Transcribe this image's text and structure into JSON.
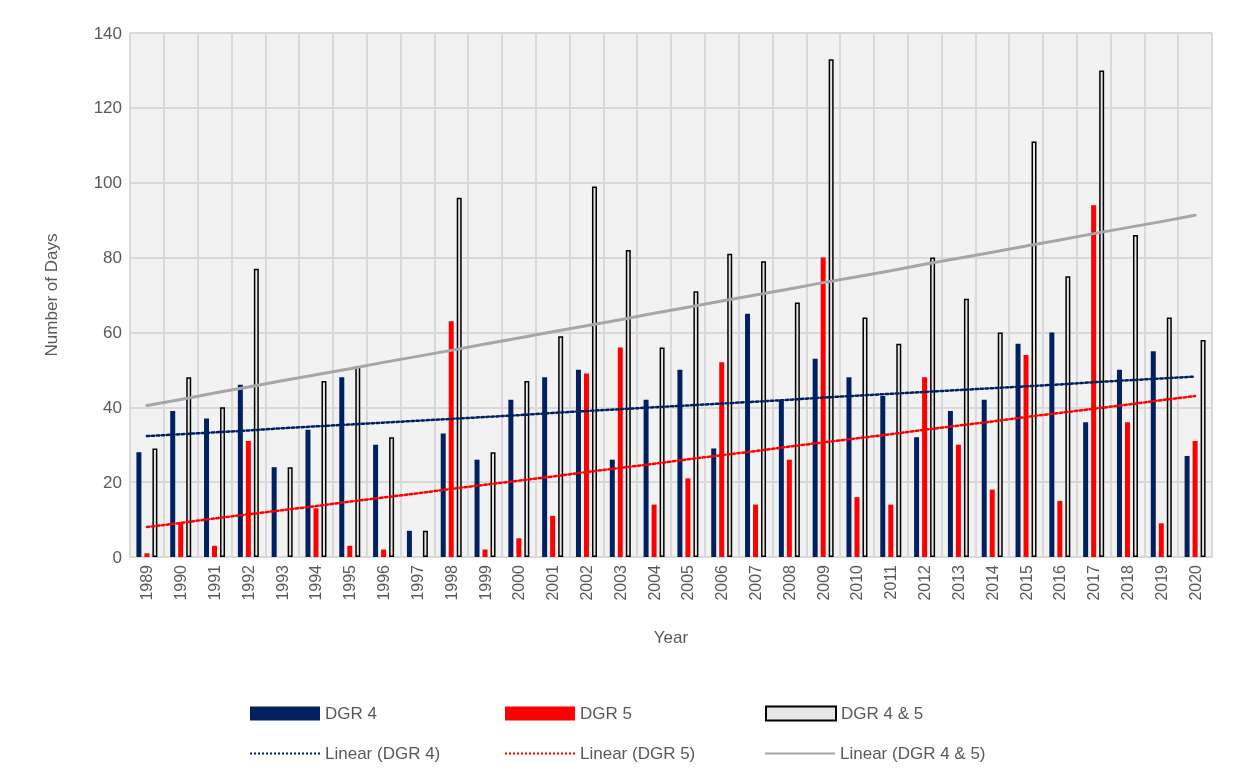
{
  "chart_data": {
    "type": "bar",
    "xlabel": "Year",
    "ylabel": "Number of Days",
    "categories": [
      "1989",
      "1990",
      "1991",
      "1992",
      "1993",
      "1994",
      "1995",
      "1996",
      "1997",
      "1998",
      "1999",
      "2000",
      "2001",
      "2002",
      "2003",
      "2004",
      "2005",
      "2006",
      "2007",
      "2008",
      "2009",
      "2010",
      "2011",
      "2012",
      "2013",
      "2014",
      "2015",
      "2016",
      "2017",
      "2018",
      "2019",
      "2020"
    ],
    "series": [
      {
        "name": "DGR 4",
        "color": "#002060",
        "values": [
          28,
          39,
          37,
          46,
          24,
          34,
          48,
          30,
          7,
          33,
          26,
          42,
          48,
          50,
          26,
          42,
          50,
          29,
          65,
          42,
          53,
          48,
          43,
          32,
          39,
          42,
          57,
          60,
          36,
          50,
          55,
          27
        ]
      },
      {
        "name": "DGR 5",
        "color": "#ff0000",
        "values": [
          1,
          9,
          3,
          31,
          0,
          13,
          3,
          2,
          0,
          63,
          2,
          5,
          11,
          49,
          56,
          14,
          21,
          52,
          14,
          26,
          80,
          16,
          14,
          48,
          30,
          18,
          54,
          15,
          94,
          36,
          9,
          31
        ]
      },
      {
        "name": "DGR 4 & 5",
        "color": "#e7e6e6",
        "values": [
          29,
          48,
          40,
          77,
          24,
          47,
          51,
          32,
          7,
          96,
          28,
          47,
          59,
          99,
          82,
          56,
          71,
          81,
          79,
          68,
          133,
          64,
          57,
          80,
          69,
          60,
          111,
          75,
          130,
          86,
          64,
          58
        ]
      },
      {
        "name": "Linear (DGR 4)",
        "type": "line",
        "line_style": "dotted",
        "color": "#002060",
        "values": [
          32.3,
          32.8,
          33.3,
          33.8,
          34.4,
          34.9,
          35.4,
          35.9,
          36.4,
          36.9,
          37.4,
          37.9,
          38.5,
          39.0,
          39.5,
          40.0,
          40.5,
          41.0,
          41.5,
          42.0,
          42.6,
          43.1,
          43.6,
          44.1,
          44.6,
          45.1,
          45.6,
          46.1,
          46.7,
          47.2,
          47.7,
          48.2
        ]
      },
      {
        "name": "Linear (DGR 5)",
        "type": "line",
        "line_style": "dotted",
        "color": "#ff0000",
        "values": [
          8,
          9.1,
          10.3,
          11.4,
          12.5,
          13.6,
          14.8,
          15.9,
          17,
          18.2,
          19.3,
          20.4,
          21.5,
          22.7,
          23.8,
          24.9,
          26.1,
          27.2,
          28.3,
          29.5,
          30.6,
          31.7,
          32.8,
          34,
          35.1,
          36.2,
          37.4,
          38.5,
          39.6,
          40.7,
          41.9,
          43
        ]
      },
      {
        "name": "Linear (DGR 4 & 5)",
        "type": "line",
        "line_style": "solid",
        "color": "#a6a6a6",
        "values": [
          40.5,
          42.1,
          43.8,
          45.4,
          47.1,
          48.7,
          50.3,
          52,
          53.6,
          55.2,
          56.9,
          58.5,
          60.2,
          61.8,
          63.4,
          65.1,
          66.7,
          68.4,
          70,
          71.6,
          73.3,
          74.9,
          76.5,
          78.2,
          79.8,
          81.4,
          83.1,
          84.7,
          86.4,
          88,
          89.6,
          91.3
        ]
      }
    ],
    "ylim": [
      0,
      140
    ],
    "yticks": [
      0,
      20,
      40,
      60,
      80,
      100,
      120,
      140
    ],
    "grid": true,
    "legend": "bottom",
    "marker": "none"
  }
}
